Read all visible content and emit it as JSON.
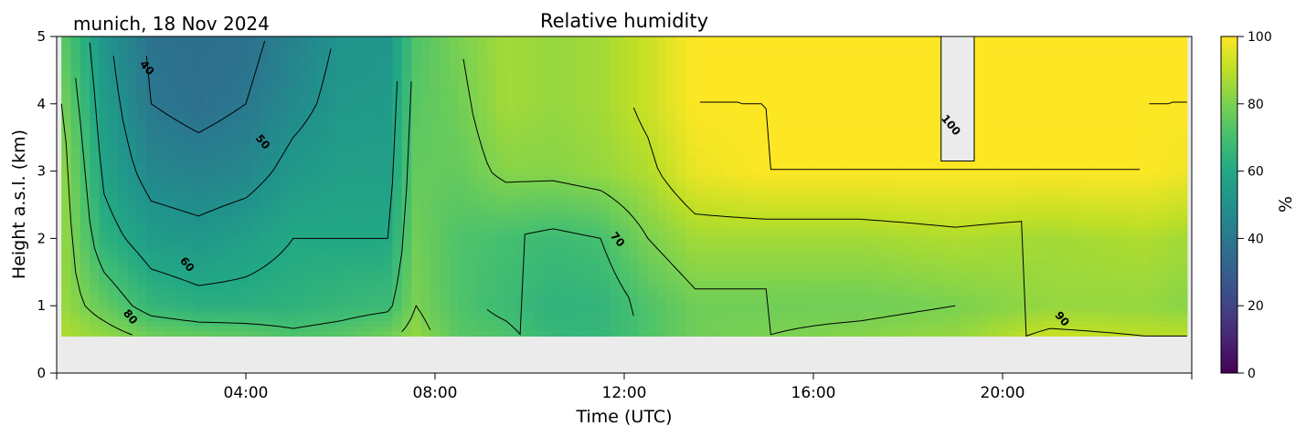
{
  "chart_data": {
    "type": "heatmap",
    "title": "Relative humidity",
    "location_date": "munich, 18 Nov 2024",
    "xlabel": "Time (UTC)",
    "ylabel": "Height a.s.l. (km)",
    "x_unit": "hours UTC",
    "xlim": [
      0,
      24
    ],
    "ylim": [
      0,
      5
    ],
    "x_ticks": [
      {
        "value": 4,
        "label": "04:00"
      },
      {
        "value": 8,
        "label": "08:00"
      },
      {
        "value": 12,
        "label": "12:00"
      },
      {
        "value": 16,
        "label": "16:00"
      },
      {
        "value": 20,
        "label": "20:00"
      }
    ],
    "y_ticks": [
      {
        "value": 0,
        "label": "0"
      },
      {
        "value": 1,
        "label": "1"
      },
      {
        "value": 2,
        "label": "2"
      },
      {
        "value": 3,
        "label": "3"
      },
      {
        "value": 4,
        "label": "4"
      },
      {
        "value": 5,
        "label": "5"
      }
    ],
    "colorbar": {
      "label": "%",
      "colormap": "viridis",
      "range": [
        0,
        100
      ],
      "ticks": [
        {
          "value": 0,
          "label": "0"
        },
        {
          "value": 20,
          "label": "20"
        },
        {
          "value": 40,
          "label": "40"
        },
        {
          "value": 60,
          "label": "60"
        },
        {
          "value": 80,
          "label": "80"
        },
        {
          "value": 100,
          "label": "100"
        }
      ]
    },
    "data_height_range_km": [
      0.55,
      5
    ],
    "no_data_color": "#ebebeb",
    "contour_levels": [
      40,
      50,
      60,
      70,
      80,
      90,
      100
    ],
    "contour_labels": [
      {
        "text": "40",
        "x": 1.85,
        "y": 4.5
      },
      {
        "text": "50",
        "x": 4.3,
        "y": 3.4
      },
      {
        "text": "60",
        "x": 2.7,
        "y": 1.58
      },
      {
        "text": "70",
        "x": 11.8,
        "y": 1.95
      },
      {
        "text": "80",
        "x": 1.5,
        "y": 0.8
      },
      {
        "text": "90",
        "x": 21.2,
        "y": 0.77
      },
      {
        "text": "100",
        "x": 18.85,
        "y": 3.65
      }
    ],
    "humidity_profiles": [
      {
        "time": 0.1,
        "heights": [
          0.55,
          1.0,
          2.0,
          3.0,
          4.0,
          5.0
        ],
        "values": [
          88,
          85,
          85,
          85,
          80,
          75
        ]
      },
      {
        "time": 1.0,
        "heights": [
          0.55,
          1.0,
          2.0,
          3.0,
          4.0,
          5.0
        ],
        "values": [
          84,
          76,
          64,
          58,
          55,
          52
        ]
      },
      {
        "time": 2.0,
        "heights": [
          0.55,
          1.0,
          2.0,
          3.0,
          4.0,
          5.0
        ],
        "values": [
          78,
          66,
          55,
          46,
          40,
          38
        ]
      },
      {
        "time": 3.0,
        "heights": [
          0.55,
          1.0,
          2.0,
          3.0,
          4.0,
          5.0
        ],
        "values": [
          76,
          63,
          53,
          44,
          37,
          36
        ]
      },
      {
        "time": 4.0,
        "heights": [
          0.55,
          1.0,
          2.0,
          3.0,
          4.0,
          5.0
        ],
        "values": [
          75,
          63,
          56,
          46,
          40,
          37
        ]
      },
      {
        "time": 5.0,
        "heights": [
          0.55,
          1.0,
          2.0,
          3.0,
          4.0,
          5.0
        ],
        "values": [
          72,
          64,
          60,
          53,
          47,
          44
        ]
      },
      {
        "time": 6.0,
        "heights": [
          0.55,
          1.0,
          2.0,
          3.0,
          4.0,
          5.0
        ],
        "values": [
          74,
          66,
          60,
          56,
          53,
          51
        ]
      },
      {
        "time": 7.0,
        "heights": [
          0.55,
          1.0,
          2.0,
          3.0,
          4.0,
          5.0
        ],
        "values": [
          78,
          68,
          60,
          56,
          54,
          52
        ]
      },
      {
        "time": 7.6,
        "heights": [
          0.55,
          1.0,
          2.0,
          3.0,
          4.0,
          5.0
        ],
        "values": [
          84,
          80,
          78,
          76,
          74,
          72
        ]
      },
      {
        "time": 8.5,
        "heights": [
          0.55,
          1.0,
          2.0,
          3.0,
          4.0,
          5.0
        ],
        "values": [
          74,
          72,
          72,
          76,
          78,
          80
        ]
      },
      {
        "time": 9.5,
        "heights": [
          0.55,
          1.0,
          2.0,
          3.0,
          4.0,
          5.0
        ],
        "values": [
          72,
          68,
          70,
          82,
          86,
          86
        ]
      },
      {
        "time": 10.5,
        "heights": [
          0.55,
          1.0,
          2.0,
          3.0,
          4.0,
          5.0
        ],
        "values": [
          66,
          64,
          68,
          82,
          84,
          84
        ]
      },
      {
        "time": 11.5,
        "heights": [
          0.55,
          1.0,
          2.0,
          3.0,
          4.0,
          5.0
        ],
        "values": [
          66,
          65,
          70,
          84,
          86,
          86
        ]
      },
      {
        "time": 12.5,
        "heights": [
          0.55,
          1.0,
          2.0,
          3.0,
          4.0,
          5.0
        ],
        "values": [
          72,
          72,
          80,
          88,
          92,
          92
        ]
      },
      {
        "time": 13.5,
        "heights": [
          0.55,
          1.0,
          2.0,
          3.0,
          4.0,
          5.0
        ],
        "values": [
          78,
          78,
          86,
          97,
          100,
          100
        ]
      },
      {
        "time": 15.0,
        "heights": [
          0.55,
          1.0,
          2.0,
          3.0,
          4.0,
          5.0
        ],
        "values": [
          80,
          78,
          86,
          100,
          100,
          100
        ]
      },
      {
        "time": 17.0,
        "heights": [
          0.55,
          1.0,
          2.0,
          3.0,
          4.0,
          5.0
        ],
        "values": [
          82,
          78,
          86,
          100,
          100,
          100
        ]
      },
      {
        "time": 19.0,
        "heights": [
          0.55,
          1.0,
          2.0,
          3.0,
          4.0,
          5.0
        ],
        "values": [
          84,
          80,
          88,
          100,
          100,
          100
        ]
      },
      {
        "time": 21.0,
        "heights": [
          0.55,
          1.0,
          2.0,
          3.0,
          4.0,
          5.0
        ],
        "values": [
          92,
          84,
          86,
          100,
          100,
          100
        ]
      },
      {
        "time": 23.0,
        "heights": [
          0.55,
          1.0,
          2.0,
          3.0,
          4.0,
          5.0
        ],
        "values": [
          90,
          84,
          88,
          100,
          100,
          100
        ]
      },
      {
        "time": 23.9,
        "heights": [
          0.55,
          1.0,
          2.0,
          3.0,
          4.0,
          5.0
        ],
        "values": [
          90,
          82,
          86,
          98,
          100,
          100
        ]
      }
    ],
    "supersaturated_gaps": [
      {
        "time_start": 18.7,
        "time_end": 19.4,
        "height_start": 3.15,
        "height_end": 5.0
      }
    ]
  }
}
